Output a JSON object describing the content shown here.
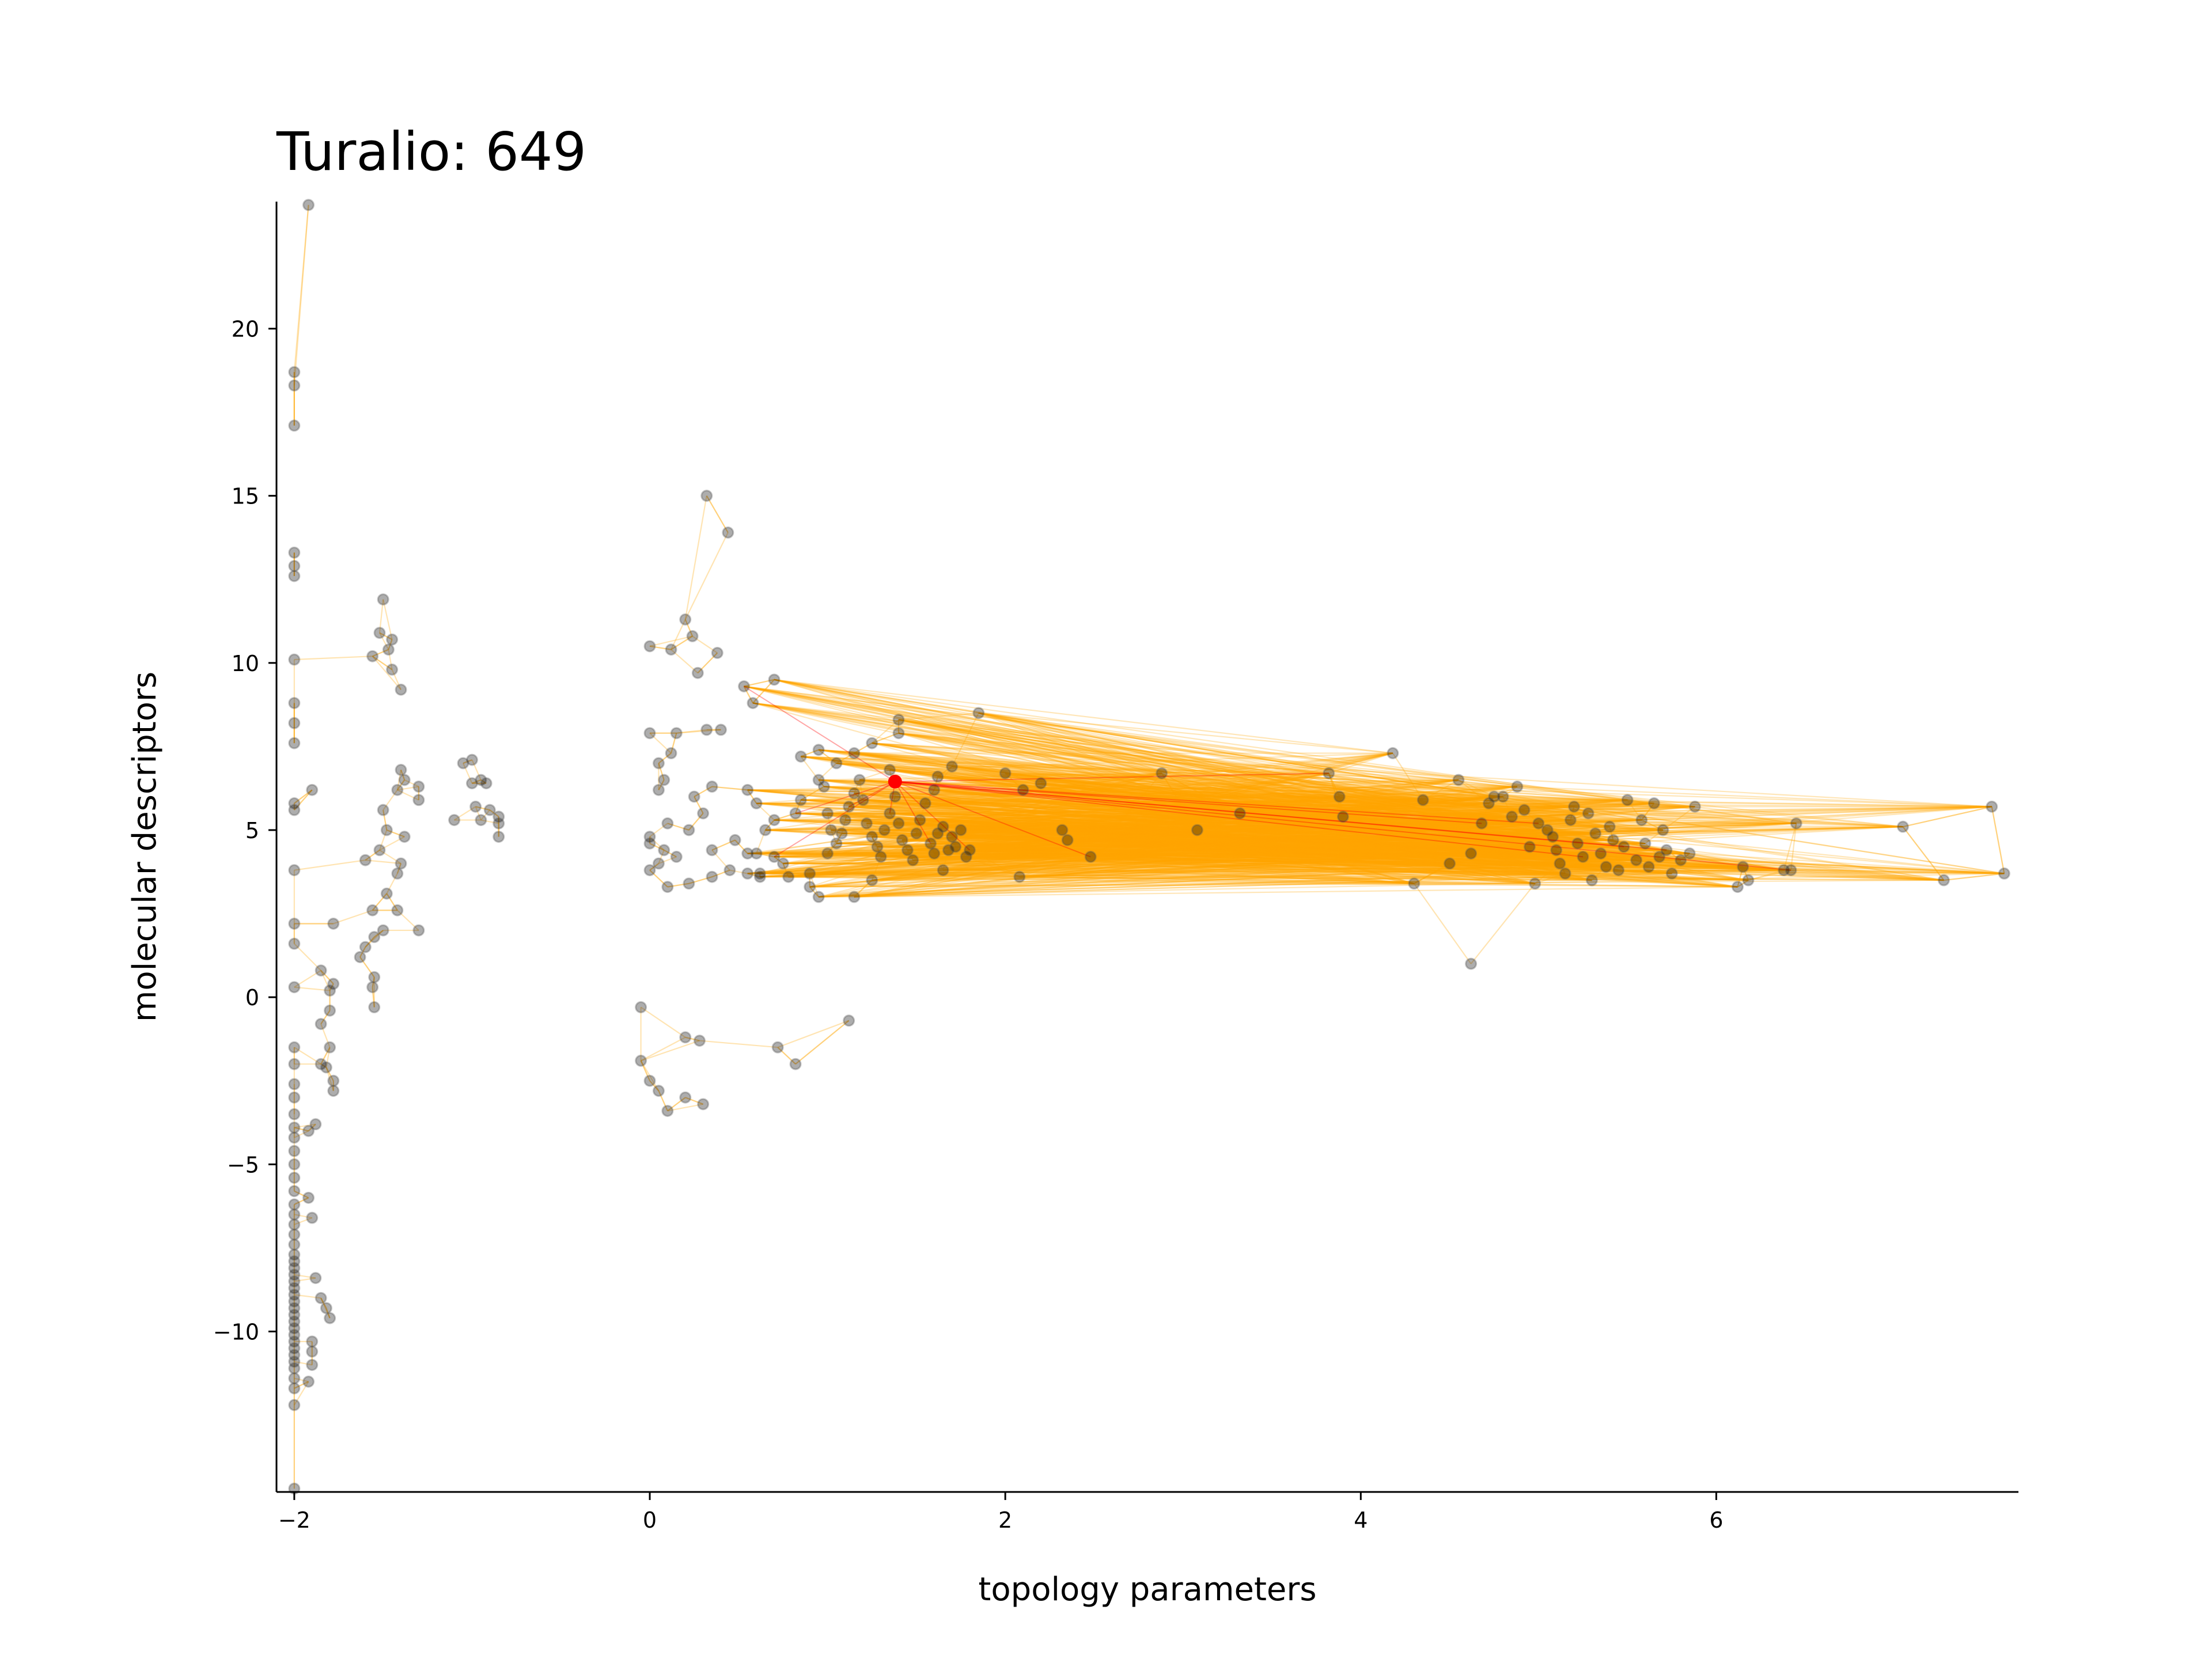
{
  "chart_data": {
    "type": "scatter",
    "title": "Turalio: 649",
    "xlabel": "topology parameters",
    "ylabel": "molecular descriptors",
    "xlim": [
      -2.1,
      7.7
    ],
    "ylim": [
      -14.8,
      23.8
    ],
    "x_ticks": [
      -2,
      0,
      2,
      4,
      6
    ],
    "x_tick_labels": [
      "−2",
      "0",
      "2",
      "4",
      "6"
    ],
    "y_ticks": [
      -10,
      -5,
      0,
      5,
      10,
      15,
      20
    ],
    "y_tick_labels": [
      "−10",
      "−5",
      "0",
      "5",
      "10",
      "15",
      "20"
    ],
    "grid": false,
    "colors": {
      "points": "#000000",
      "edges": "#ffa500",
      "highlight": "#ff0000"
    },
    "highlight_point": {
      "x": 1.38,
      "y": 6.45
    },
    "points": [
      [
        -1.92,
        23.7
      ],
      [
        -2.0,
        18.7
      ],
      [
        -2.0,
        18.3
      ],
      [
        -2.0,
        17.1
      ],
      [
        -2.0,
        13.3
      ],
      [
        -2.0,
        12.9
      ],
      [
        -2.0,
        12.6
      ],
      [
        -2.0,
        10.1
      ],
      [
        -2.0,
        8.8
      ],
      [
        -2.0,
        8.2
      ],
      [
        -2.0,
        7.6
      ],
      [
        -2.0,
        5.8
      ],
      [
        -2.0,
        5.6
      ],
      [
        -1.9,
        6.2
      ],
      [
        -2.0,
        3.8
      ],
      [
        -2.0,
        2.2
      ],
      [
        -2.0,
        1.6
      ],
      [
        -2.0,
        0.3
      ],
      [
        -1.78,
        2.2
      ],
      [
        -1.78,
        0.4
      ],
      [
        -1.8,
        0.2
      ],
      [
        -1.85,
        0.8
      ],
      [
        -1.8,
        -0.4
      ],
      [
        -1.85,
        -0.8
      ],
      [
        -2.0,
        -1.5
      ],
      [
        -2.0,
        -2.0
      ],
      [
        -2.0,
        -2.6
      ],
      [
        -2.0,
        -3.0
      ],
      [
        -2.0,
        -3.5
      ],
      [
        -2.0,
        -3.9
      ],
      [
        -2.0,
        -4.2
      ],
      [
        -2.0,
        -4.6
      ],
      [
        -2.0,
        -5.0
      ],
      [
        -2.0,
        -5.4
      ],
      [
        -2.0,
        -5.8
      ],
      [
        -2.0,
        -6.2
      ],
      [
        -2.0,
        -6.5
      ],
      [
        -2.0,
        -6.8
      ],
      [
        -2.0,
        -7.1
      ],
      [
        -2.0,
        -7.4
      ],
      [
        -2.0,
        -7.7
      ],
      [
        -2.0,
        -7.9
      ],
      [
        -2.0,
        -8.1
      ],
      [
        -2.0,
        -8.3
      ],
      [
        -2.0,
        -8.5
      ],
      [
        -2.0,
        -8.7
      ],
      [
        -2.0,
        -8.9
      ],
      [
        -2.0,
        -9.1
      ],
      [
        -2.0,
        -9.3
      ],
      [
        -2.0,
        -9.5
      ],
      [
        -2.0,
        -9.7
      ],
      [
        -2.0,
        -9.9
      ],
      [
        -2.0,
        -10.1
      ],
      [
        -2.0,
        -10.3
      ],
      [
        -2.0,
        -10.5
      ],
      [
        -2.0,
        -10.7
      ],
      [
        -2.0,
        -10.9
      ],
      [
        -2.0,
        -11.1
      ],
      [
        -2.0,
        -11.4
      ],
      [
        -2.0,
        -11.7
      ],
      [
        -2.0,
        -12.2
      ],
      [
        -1.92,
        -6.0
      ],
      [
        -1.9,
        -6.6
      ],
      [
        -1.88,
        -8.4
      ],
      [
        -1.82,
        -9.3
      ],
      [
        -1.8,
        -9.6
      ],
      [
        -1.85,
        -9.0
      ],
      [
        -1.9,
        -10.3
      ],
      [
        -1.9,
        -10.6
      ],
      [
        -1.9,
        -11.0
      ],
      [
        -1.92,
        -11.5
      ],
      [
        -1.92,
        -4.0
      ],
      [
        -1.88,
        -3.8
      ],
      [
        -1.85,
        -2.0
      ],
      [
        -1.8,
        -1.5
      ],
      [
        -1.82,
        -2.1
      ],
      [
        -1.78,
        -2.5
      ],
      [
        -1.78,
        -2.8
      ],
      [
        -2.0,
        -14.7
      ],
      [
        -1.5,
        11.9
      ],
      [
        -1.52,
        10.9
      ],
      [
        -1.45,
        10.7
      ],
      [
        -1.47,
        10.4
      ],
      [
        -1.45,
        9.8
      ],
      [
        -1.4,
        9.2
      ],
      [
        -1.56,
        10.2
      ],
      [
        -1.4,
        6.8
      ],
      [
        -1.38,
        6.5
      ],
      [
        -1.42,
        6.2
      ],
      [
        -1.3,
        6.3
      ],
      [
        -1.3,
        5.9
      ],
      [
        -1.5,
        5.6
      ],
      [
        -1.48,
        5.0
      ],
      [
        -1.52,
        4.4
      ],
      [
        -1.6,
        4.1
      ],
      [
        -1.4,
        4.0
      ],
      [
        -1.42,
        3.7
      ],
      [
        -1.48,
        3.1
      ],
      [
        -1.56,
        2.6
      ],
      [
        -1.5,
        2.0
      ],
      [
        -1.55,
        1.8
      ],
      [
        -1.6,
        1.5
      ],
      [
        -1.63,
        1.2
      ],
      [
        -1.55,
        0.6
      ],
      [
        -1.56,
        0.3
      ],
      [
        -1.55,
        -0.3
      ],
      [
        -1.42,
        2.6
      ],
      [
        -1.3,
        2.0
      ],
      [
        -1.38,
        4.8
      ],
      [
        -1.05,
        7.0
      ],
      [
        -1.0,
        7.1
      ],
      [
        -0.95,
        6.5
      ],
      [
        -0.92,
        6.4
      ],
      [
        -1.0,
        6.4
      ],
      [
        -0.98,
        5.7
      ],
      [
        -0.9,
        5.6
      ],
      [
        -0.85,
        5.4
      ],
      [
        -0.85,
        5.2
      ],
      [
        -0.85,
        4.8
      ],
      [
        -0.95,
        5.3
      ],
      [
        -1.1,
        5.3
      ],
      [
        0.32,
        15.0
      ],
      [
        0.44,
        13.9
      ],
      [
        0.2,
        11.3
      ],
      [
        0.24,
        10.8
      ],
      [
        0.12,
        10.4
      ],
      [
        0.0,
        10.5
      ],
      [
        0.38,
        10.3
      ],
      [
        0.27,
        9.7
      ],
      [
        0.53,
        9.3
      ],
      [
        0.58,
        8.8
      ],
      [
        0.7,
        9.5
      ],
      [
        0.4,
        8.0
      ],
      [
        0.32,
        8.0
      ],
      [
        0.0,
        7.9
      ],
      [
        0.15,
        7.9
      ],
      [
        0.12,
        7.3
      ],
      [
        0.05,
        7.0
      ],
      [
        0.08,
        6.5
      ],
      [
        0.05,
        6.2
      ],
      [
        0.25,
        6.0
      ],
      [
        0.35,
        6.3
      ],
      [
        0.55,
        6.2
      ],
      [
        0.6,
        5.8
      ],
      [
        0.3,
        5.5
      ],
      [
        0.22,
        5.0
      ],
      [
        0.1,
        5.2
      ],
      [
        0.0,
        4.8
      ],
      [
        0.0,
        4.6
      ],
      [
        0.08,
        4.4
      ],
      [
        0.15,
        4.2
      ],
      [
        0.35,
        4.4
      ],
      [
        0.48,
        4.7
      ],
      [
        0.55,
        4.3
      ],
      [
        0.6,
        4.3
      ],
      [
        0.45,
        3.8
      ],
      [
        0.35,
        3.6
      ],
      [
        0.22,
        3.4
      ],
      [
        0.1,
        3.3
      ],
      [
        0.0,
        3.8
      ],
      [
        0.05,
        4.0
      ],
      [
        0.55,
        3.7
      ],
      [
        0.62,
        3.7
      ],
      [
        0.7,
        4.2
      ],
      [
        0.75,
        4.0
      ],
      [
        0.78,
        3.6
      ],
      [
        0.9,
        3.7
      ],
      [
        1.0,
        4.3
      ],
      [
        0.95,
        3.0
      ],
      [
        1.15,
        3.0
      ],
      [
        0.65,
        5.0
      ],
      [
        0.7,
        5.3
      ],
      [
        0.82,
        5.5
      ],
      [
        0.85,
        5.9
      ],
      [
        0.95,
        6.5
      ],
      [
        0.98,
        6.3
      ],
      [
        1.0,
        5.5
      ],
      [
        1.02,
        5.0
      ],
      [
        1.05,
        4.6
      ],
      [
        1.08,
        4.9
      ],
      [
        1.1,
        5.3
      ],
      [
        1.12,
        5.7
      ],
      [
        1.15,
        6.1
      ],
      [
        1.18,
        6.5
      ],
      [
        1.2,
        5.9
      ],
      [
        1.22,
        5.2
      ],
      [
        1.25,
        4.8
      ],
      [
        1.28,
        4.5
      ],
      [
        1.3,
        4.2
      ],
      [
        1.32,
        5.0
      ],
      [
        1.35,
        5.5
      ],
      [
        1.38,
        6.0
      ],
      [
        1.4,
        5.2
      ],
      [
        1.42,
        4.7
      ],
      [
        1.45,
        4.4
      ],
      [
        1.48,
        4.1
      ],
      [
        1.5,
        4.9
      ],
      [
        1.52,
        5.3
      ],
      [
        1.55,
        5.8
      ],
      [
        1.58,
        4.6
      ],
      [
        1.6,
        4.3
      ],
      [
        1.62,
        4.9
      ],
      [
        1.65,
        5.1
      ],
      [
        1.68,
        4.4
      ],
      [
        1.7,
        4.8
      ],
      [
        1.72,
        4.5
      ],
      [
        1.75,
        5.0
      ],
      [
        1.78,
        4.2
      ],
      [
        1.8,
        4.4
      ],
      [
        0.85,
        7.2
      ],
      [
        0.95,
        7.4
      ],
      [
        1.05,
        7.0
      ],
      [
        1.15,
        7.3
      ],
      [
        1.25,
        7.6
      ],
      [
        1.4,
        8.3
      ],
      [
        1.4,
        7.9
      ],
      [
        1.35,
        6.8
      ],
      [
        1.6,
        6.2
      ],
      [
        1.62,
        6.6
      ],
      [
        1.7,
        6.9
      ],
      [
        1.85,
        8.5
      ],
      [
        2.0,
        6.7
      ],
      [
        2.1,
        6.2
      ],
      [
        2.2,
        6.4
      ],
      [
        2.32,
        5.0
      ],
      [
        2.35,
        4.7
      ],
      [
        2.48,
        4.2
      ],
      [
        2.08,
        3.6
      ],
      [
        1.65,
        3.8
      ],
      [
        1.25,
        3.5
      ],
      [
        0.9,
        3.3
      ],
      [
        0.62,
        3.6
      ],
      [
        -0.05,
        -0.3
      ],
      [
        0.2,
        -1.2
      ],
      [
        0.28,
        -1.3
      ],
      [
        -0.05,
        -1.9
      ],
      [
        0.0,
        -2.5
      ],
      [
        0.05,
        -2.8
      ],
      [
        0.1,
        -3.4
      ],
      [
        0.2,
        -3.0
      ],
      [
        0.3,
        -3.2
      ],
      [
        0.72,
        -1.5
      ],
      [
        0.82,
        -2.0
      ],
      [
        1.12,
        -0.7
      ],
      [
        2.88,
        6.7
      ],
      [
        3.08,
        5.0
      ],
      [
        3.32,
        5.5
      ],
      [
        3.82,
        6.7
      ],
      [
        3.88,
        6.0
      ],
      [
        3.9,
        5.4
      ],
      [
        4.18,
        7.3
      ],
      [
        4.3,
        3.4
      ],
      [
        4.35,
        5.9
      ],
      [
        4.55,
        6.5
      ],
      [
        4.62,
        1.0
      ],
      [
        4.5,
        4.0
      ],
      [
        4.62,
        4.3
      ],
      [
        4.68,
        5.2
      ],
      [
        4.72,
        5.8
      ],
      [
        4.75,
        6.0
      ],
      [
        4.8,
        6.0
      ],
      [
        4.85,
        5.4
      ],
      [
        4.88,
        6.3
      ],
      [
        4.92,
        5.6
      ],
      [
        4.95,
        4.5
      ],
      [
        4.98,
        3.4
      ],
      [
        5.0,
        5.2
      ],
      [
        5.05,
        5.0
      ],
      [
        5.08,
        4.8
      ],
      [
        5.1,
        4.4
      ],
      [
        5.12,
        4.0
      ],
      [
        5.15,
        3.7
      ],
      [
        5.18,
        5.3
      ],
      [
        5.2,
        5.7
      ],
      [
        5.22,
        4.6
      ],
      [
        5.25,
        4.2
      ],
      [
        5.28,
        5.5
      ],
      [
        5.3,
        3.5
      ],
      [
        5.32,
        4.9
      ],
      [
        5.35,
        4.3
      ],
      [
        5.38,
        3.9
      ],
      [
        5.4,
        5.1
      ],
      [
        5.42,
        4.7
      ],
      [
        5.45,
        3.8
      ],
      [
        5.48,
        4.5
      ],
      [
        5.5,
        5.9
      ],
      [
        5.55,
        4.1
      ],
      [
        5.58,
        5.3
      ],
      [
        5.6,
        4.6
      ],
      [
        5.62,
        3.9
      ],
      [
        5.65,
        5.8
      ],
      [
        5.68,
        4.2
      ],
      [
        5.7,
        5.0
      ],
      [
        5.72,
        4.4
      ],
      [
        5.75,
        3.7
      ],
      [
        5.8,
        4.1
      ],
      [
        5.85,
        4.3
      ],
      [
        5.88,
        5.7
      ],
      [
        6.12,
        3.3
      ],
      [
        6.15,
        3.9
      ],
      [
        6.18,
        3.5
      ],
      [
        6.38,
        3.8
      ],
      [
        6.42,
        3.8
      ],
      [
        6.45,
        5.2
      ],
      [
        7.05,
        5.1
      ],
      [
        7.28,
        3.5
      ],
      [
        7.55,
        5.7
      ],
      [
        7.62,
        3.7
      ]
    ]
  }
}
